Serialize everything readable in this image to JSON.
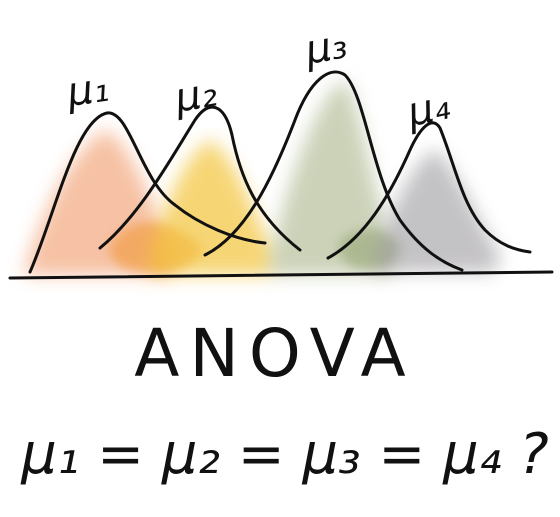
{
  "diagram": {
    "curve_labels": [
      "μ₁",
      "μ₂",
      "μ₃",
      "μ₄"
    ],
    "title": "ANOVA",
    "hypothesis": "μ₁ = μ₂ = μ₃ = μ₄ ?"
  },
  "colors": {
    "ink": "#111111",
    "group_1": "#f3a77e",
    "group_2": "#f3c43a",
    "group_3": "#a9b58a",
    "group_4": "#9c9a9e",
    "accent_orange": "#f19a3b"
  }
}
